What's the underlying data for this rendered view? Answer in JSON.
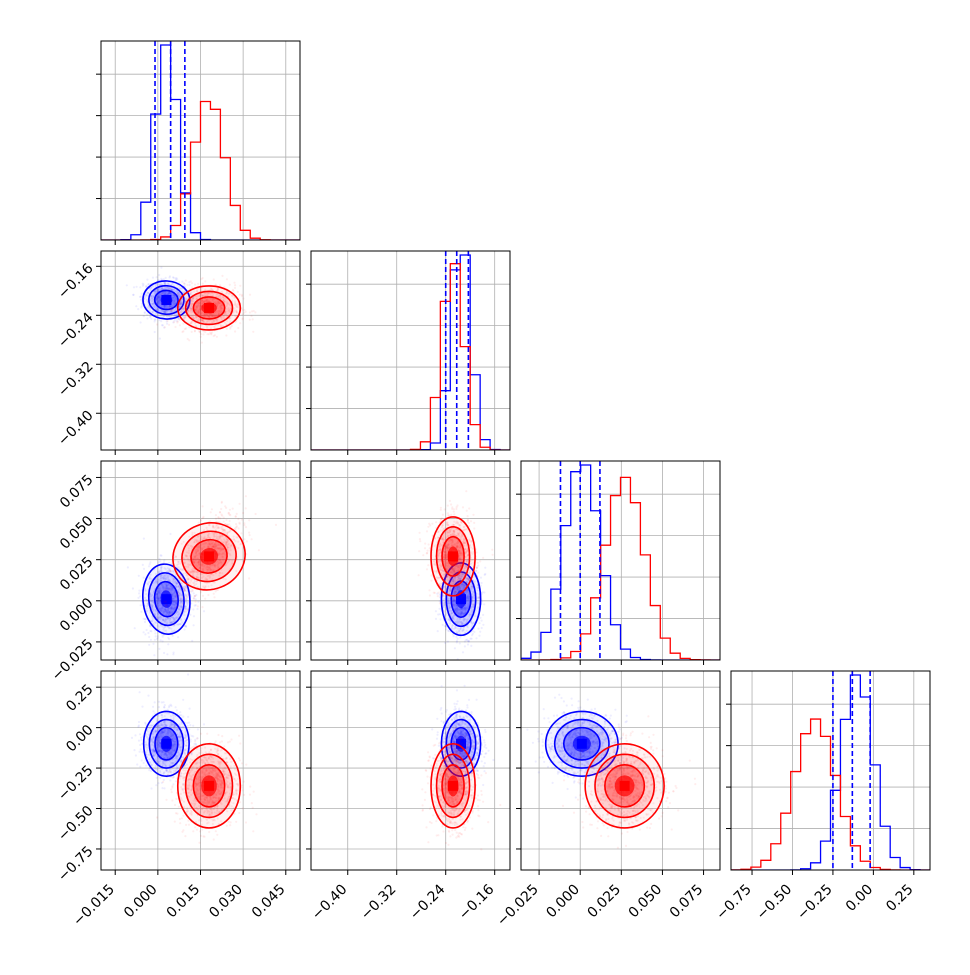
{
  "colors": {
    "series_a": "#0000ff",
    "series_b": "#ff0000",
    "grid": "#b0b0b0",
    "frame": "#000000"
  },
  "chart_data": {
    "type": "corner",
    "grid": true,
    "params": [
      {
        "range": [
          -0.02,
          0.05
        ],
        "ticks": [
          -0.015,
          0.0,
          0.015,
          0.03,
          0.045
        ],
        "tick_labels": [
          "−0.015",
          "0.000",
          "0.015",
          "0.030",
          "0.045"
        ],
        "quantiles_a": [
          -0.001,
          0.0045,
          0.0095
        ]
      },
      {
        "range": [
          -0.46,
          -0.135
        ],
        "ticks": [
          -0.4,
          -0.32,
          -0.24,
          -0.16
        ],
        "tick_labels": [
          "−0.40",
          "−0.32",
          "−0.24",
          "−0.16"
        ],
        "quantiles_a": [
          -0.24,
          -0.222,
          -0.203
        ]
      },
      {
        "range": [
          -0.036,
          0.085
        ],
        "ticks": [
          -0.025,
          0.0,
          0.025,
          0.05,
          0.075
        ],
        "tick_labels": [
          "−0.025",
          "0.000",
          "0.025",
          "0.050",
          "0.075"
        ],
        "quantiles_a": [
          -0.012,
          0.0,
          0.012
        ]
      },
      {
        "range": [
          -0.88,
          0.35
        ],
        "ticks": [
          -0.75,
          -0.5,
          -0.25,
          0.0,
          0.25
        ],
        "tick_labels": [
          "−0.75",
          "−0.50",
          "−0.25",
          "0.00",
          "0.25"
        ],
        "quantiles_a": [
          -0.25,
          -0.13,
          -0.02
        ]
      }
    ],
    "series": [
      {
        "color": "#0000ff",
        "mean": [
          0.003,
          -0.215,
          0.001,
          -0.1
        ],
        "std": [
          0.004,
          0.016,
          0.011,
          0.1
        ],
        "corr": [
          [
            1,
            -0.1,
            0.1,
            0.0
          ],
          [
            -0.1,
            1,
            0.0,
            0.0
          ],
          [
            0.1,
            0.0,
            1,
            0.0
          ],
          [
            0.0,
            0.0,
            0.0,
            1
          ]
        ]
      },
      {
        "color": "#ff0000",
        "mean": [
          0.018,
          -0.228,
          0.027,
          -0.36
        ],
        "std": [
          0.0055,
          0.018,
          0.012,
          0.13
        ],
        "corr": [
          [
            1,
            0.0,
            0.55,
            0.0
          ],
          [
            0.0,
            1,
            0.0,
            0.0
          ],
          [
            0.55,
            0.0,
            1,
            0.0
          ],
          [
            0.0,
            0.0,
            0.0,
            1
          ]
        ]
      }
    ]
  }
}
